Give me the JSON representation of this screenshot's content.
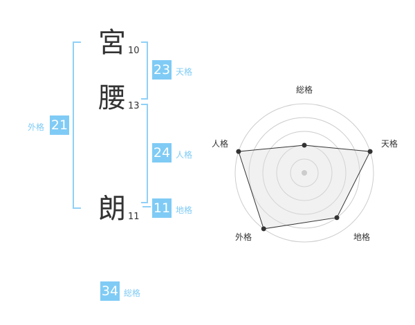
{
  "name": {
    "chars": [
      {
        "char": "宮",
        "strokes": "10"
      },
      {
        "char": "腰",
        "strokes": "13"
      },
      {
        "char": "朗",
        "strokes": "11"
      }
    ]
  },
  "scores": {
    "tenkaku": {
      "label": "天格",
      "value": "23"
    },
    "jinkaku": {
      "label": "人格",
      "value": "24"
    },
    "chikaku": {
      "label": "地格",
      "value": "11"
    },
    "gaikaku": {
      "label": "外格",
      "value": "21"
    },
    "soukaku": {
      "label": "総格",
      "value": "34"
    }
  },
  "accent_color": "#7fcbf5",
  "chart_data": {
    "type": "radar",
    "axes": [
      "総格",
      "天格",
      "地格",
      "外格",
      "人格"
    ],
    "values": [
      2,
      5,
      4,
      5,
      5
    ],
    "range": [
      0,
      5
    ],
    "rings": 5
  }
}
